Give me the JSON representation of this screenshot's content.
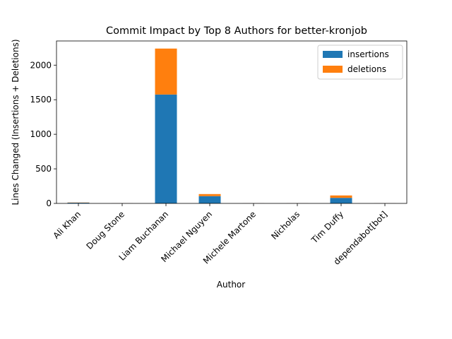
{
  "chart_data": {
    "type": "bar",
    "stacked": true,
    "title": "Commit Impact by Top 8 Authors for better-kronjob",
    "xlabel": "Author",
    "ylabel": "Lines Changed (Insertions + Deletions)",
    "categories": [
      "Ali Khan",
      "Doug Stone",
      "Liam Buchanan",
      "Michael Nguyen",
      "Michele Martone",
      "Nicholas",
      "Tim Duffy",
      "dependabot[bot]"
    ],
    "series": [
      {
        "name": "insertions",
        "color": "#1f77b4",
        "values": [
          10,
          1,
          1575,
          105,
          1,
          1,
          80,
          1
        ]
      },
      {
        "name": "deletions",
        "color": "#ff7f0e",
        "values": [
          3,
          1,
          665,
          30,
          1,
          1,
          35,
          1
        ]
      }
    ],
    "ylim": [
      0,
      2350
    ],
    "yticks": [
      0,
      500,
      1000,
      1500,
      2000
    ],
    "grid": false,
    "legend": "top-right"
  }
}
